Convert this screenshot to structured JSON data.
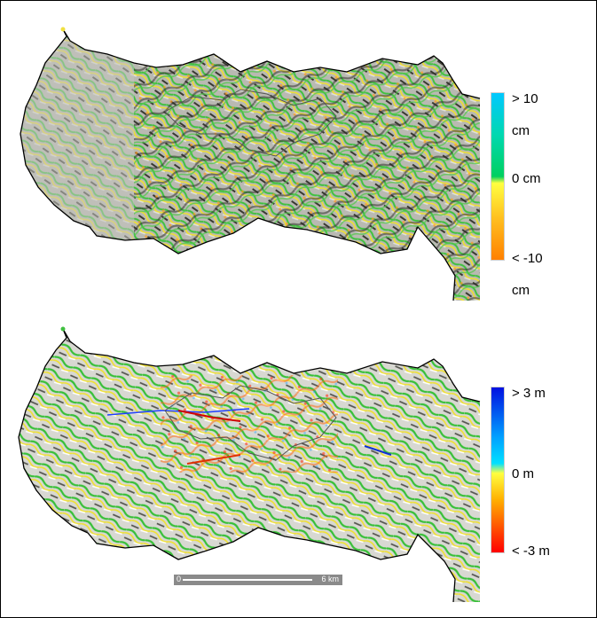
{
  "legend_top": {
    "max_label": "> 10",
    "unit_label": "cm",
    "mid_label": "0 cm",
    "min_label": "< -10",
    "min_unit": "cm",
    "colors": [
      "#00c8ff",
      "#00d060",
      "#ffff40",
      "#ff8000"
    ]
  },
  "legend_bottom": {
    "max_label": "> 3 m",
    "mid_label": "0 m",
    "min_label": "< -3 m",
    "colors": [
      "#0010e0",
      "#00e0ff",
      "#ffff40",
      "#ff0000"
    ]
  },
  "scalebar": {
    "start_label": "0",
    "end_label": "6 km"
  }
}
